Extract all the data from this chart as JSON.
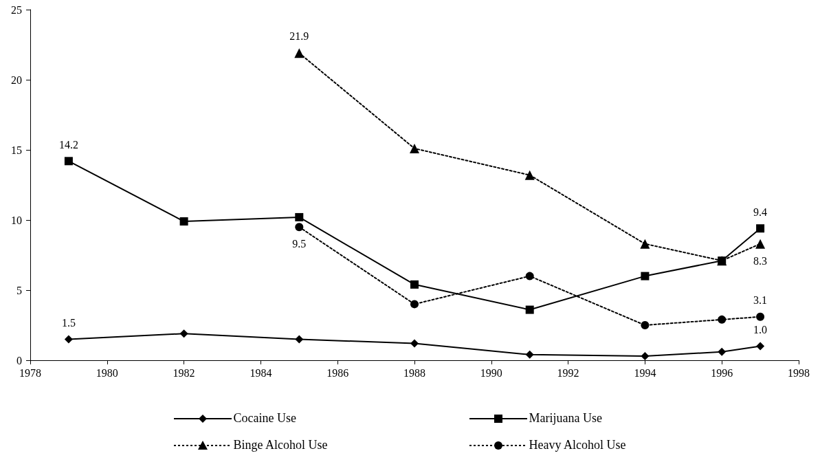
{
  "chart_data": {
    "type": "line",
    "xlim": [
      1978,
      1998
    ],
    "xticks": [
      1978,
      1980,
      1982,
      1984,
      1986,
      1988,
      1990,
      1992,
      1994,
      1996,
      1998
    ],
    "ylim": [
      0,
      25
    ],
    "yticks": [
      0,
      5,
      10,
      15,
      20,
      25
    ],
    "grid": false,
    "legend": "bottom",
    "series": [
      {
        "name": "Cocaine Use",
        "color": "#000000",
        "marker": "diamond",
        "line_style": "solid",
        "x": [
          1979,
          1982,
          1985,
          1988,
          1991,
          1994,
          1996,
          1997
        ],
        "values": [
          1.5,
          1.9,
          1.5,
          1.2,
          0.4,
          0.3,
          0.6,
          1.0
        ],
        "value_labels": [
          "1.5",
          null,
          null,
          null,
          null,
          null,
          null,
          "1.0"
        ]
      },
      {
        "name": "Marijuana Use",
        "color": "#000000",
        "marker": "square",
        "line_style": "solid",
        "x": [
          1979,
          1982,
          1985,
          1988,
          1991,
          1994,
          1996,
          1997
        ],
        "values": [
          14.2,
          9.9,
          10.2,
          5.4,
          3.6,
          6.0,
          7.1,
          9.4
        ],
        "value_labels": [
          "14.2",
          null,
          null,
          null,
          null,
          null,
          null,
          "9.4"
        ]
      },
      {
        "name": "Binge Alcohol Use",
        "color": "#000000",
        "marker": "triangle",
        "line_style": "dotted",
        "x": [
          1985,
          1988,
          1991,
          1994,
          1996,
          1997
        ],
        "values": [
          21.9,
          15.1,
          13.2,
          8.3,
          7.1,
          8.3
        ],
        "value_labels": [
          "21.9",
          null,
          null,
          null,
          null,
          "8.3"
        ]
      },
      {
        "name": "Heavy Alcohol Use",
        "color": "#000000",
        "marker": "circle",
        "line_style": "dotted",
        "x": [
          1985,
          1988,
          1991,
          1994,
          1996,
          1997
        ],
        "values": [
          9.5,
          4.0,
          6.0,
          2.5,
          2.9,
          3.1
        ],
        "value_labels": [
          "9.5",
          null,
          null,
          null,
          null,
          "3.1"
        ]
      }
    ]
  }
}
